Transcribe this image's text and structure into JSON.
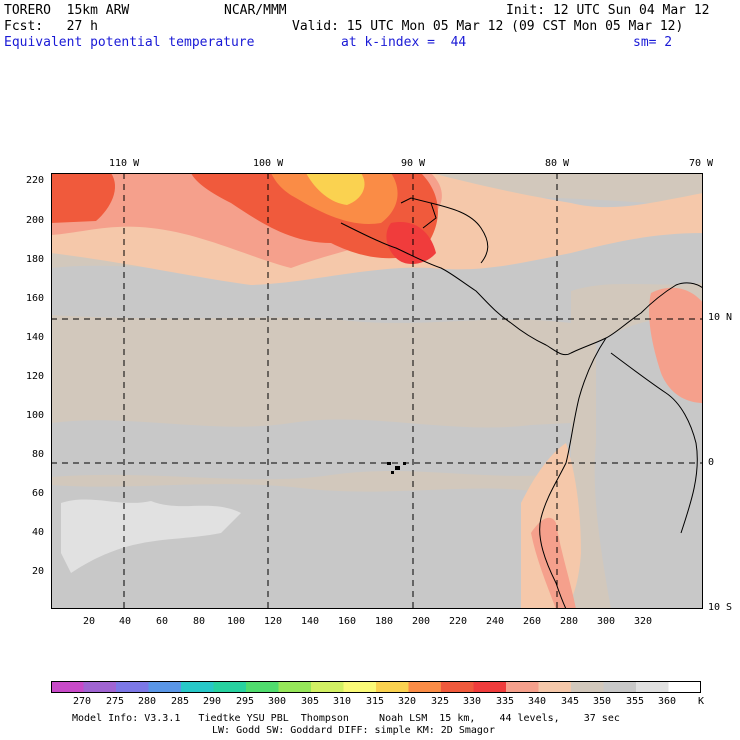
{
  "header": {
    "model": "TORERO  15km ARW",
    "center": "NCAR/MMM",
    "init": "Init: 12 UTC Sun 04 Mar 12",
    "fcst": "Fcst:   27 h",
    "valid": "Valid: 15 UTC Mon 05 Mar 12 (09 CST Mon 05 Mar 12)",
    "field": "Equivalent potential temperature",
    "level": "at k-index =  44",
    "smooth": "sm= 2"
  },
  "map": {
    "lon_labels": [
      "110 W",
      "100 W",
      "90 W",
      "80 W",
      "70 W"
    ],
    "lat_labels": [
      "10 N",
      "0",
      "10 S"
    ],
    "y_ticks": [
      "220",
      "200",
      "180",
      "160",
      "140",
      "120",
      "100",
      "80",
      "60",
      "40",
      "20"
    ],
    "x_ticks": [
      "20",
      "40",
      "60",
      "80",
      "100",
      "120",
      "140",
      "160",
      "180",
      "200",
      "220",
      "240",
      "260",
      "280",
      "300",
      "320"
    ]
  },
  "colorbar": {
    "labels": [
      "270",
      "275",
      "280",
      "285",
      "290",
      "295",
      "300",
      "305",
      "310",
      "315",
      "320",
      "325",
      "330",
      "335",
      "340",
      "345",
      "350",
      "355",
      "360"
    ],
    "unit": "K",
    "colors": [
      "#c84ac8",
      "#a064d2",
      "#7c78e6",
      "#5a96e6",
      "#28c8c8",
      "#28d2a0",
      "#50dc6e",
      "#96e65a",
      "#d2f064",
      "#fafa78",
      "#fad250",
      "#fa8c46",
      "#f05a3c",
      "#f03c3c",
      "#f5a08c",
      "#f5c8aa",
      "#d2c8bc",
      "#c8c8c8",
      "#e1e1e1",
      "#ffffff"
    ]
  },
  "footer": {
    "line1": "Model Info: V3.3.1   Tiedtke YSU PBL  Thompson     Noah LSM  15 km,    44 levels,    37 sec",
    "line2": "LW: Godd SW: Goddard DIFF: simple KM: 2D Smagor"
  }
}
